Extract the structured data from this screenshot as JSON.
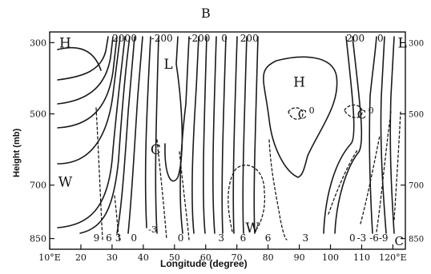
{
  "chart_data": {
    "type": "contour",
    "panel_label": "B",
    "xlabel": "Longitude (degree)",
    "ylabel": "Height (mb)",
    "x_ticks": [
      "10°E",
      "20",
      "30",
      "40",
      "50",
      "60",
      "70",
      "80",
      "90",
      "100",
      "110",
      "120°E"
    ],
    "x_tick_values": [
      10,
      20,
      30,
      40,
      50,
      60,
      70,
      80,
      90,
      100,
      110,
      120
    ],
    "y_ticks": [
      "300",
      "500",
      "700",
      "850"
    ],
    "y_tick_values": [
      300,
      500,
      700,
      850
    ],
    "xlim": [
      10,
      124
    ],
    "ylim": [
      270,
      880
    ],
    "y_axis": "pressure increases downward",
    "contour_labels": [
      {
        "text": "H",
        "lon": 15,
        "p": 300,
        "size": "large"
      },
      {
        "text": "W",
        "lon": 15,
        "p": 690,
        "size": "large"
      },
      {
        "text": "L",
        "lon": 48,
        "p": 360,
        "size": "large"
      },
      {
        "text": "C",
        "lon": 44,
        "p": 600,
        "size": "large"
      },
      {
        "text": "W",
        "lon": 75,
        "p": 820,
        "size": "large"
      },
      {
        "text": "H",
        "lon": 90,
        "p": 410,
        "size": "large"
      },
      {
        "text": "C",
        "lon": 91,
        "p": 500,
        "size": "medium"
      },
      {
        "text": "0",
        "lon": 94,
        "p": 485,
        "size": "small"
      },
      {
        "text": "C",
        "lon": 110,
        "p": 500,
        "size": "medium"
      },
      {
        "text": "0",
        "lon": 113,
        "p": 485,
        "size": "small"
      },
      {
        "text": "L",
        "lon": 123,
        "p": 300,
        "size": "large"
      },
      {
        "text": "C",
        "lon": 122,
        "p": 855,
        "size": "medium"
      },
      {
        "text": "-3",
        "lon": 43,
        "p": 820,
        "size": "small"
      }
    ],
    "top_labels": [
      {
        "text": "200",
        "lon": 33
      },
      {
        "text": "0",
        "lon": 37
      },
      {
        "text": "-200",
        "lon": 46
      },
      {
        "text": "-200",
        "lon": 58
      },
      {
        "text": "0",
        "lon": 66
      },
      {
        "text": "200",
        "lon": 74
      },
      {
        "text": "200",
        "lon": 108
      },
      {
        "text": "0",
        "lon": 116
      }
    ],
    "bottom_labels": [
      {
        "text": "9",
        "lon": 25
      },
      {
        "text": "6",
        "lon": 29
      },
      {
        "text": "3",
        "lon": 32
      },
      {
        "text": "0",
        "lon": 37
      },
      {
        "text": "0",
        "lon": 52
      },
      {
        "text": "3",
        "lon": 65
      },
      {
        "text": "6",
        "lon": 72
      },
      {
        "text": "6",
        "lon": 80
      },
      {
        "text": "3",
        "lon": 92
      },
      {
        "text": "0",
        "lon": 107
      },
      {
        "text": "-3",
        "lon": 110
      },
      {
        "text": "-6",
        "lon": 114
      },
      {
        "text": "-9",
        "lon": 117
      }
    ]
  }
}
